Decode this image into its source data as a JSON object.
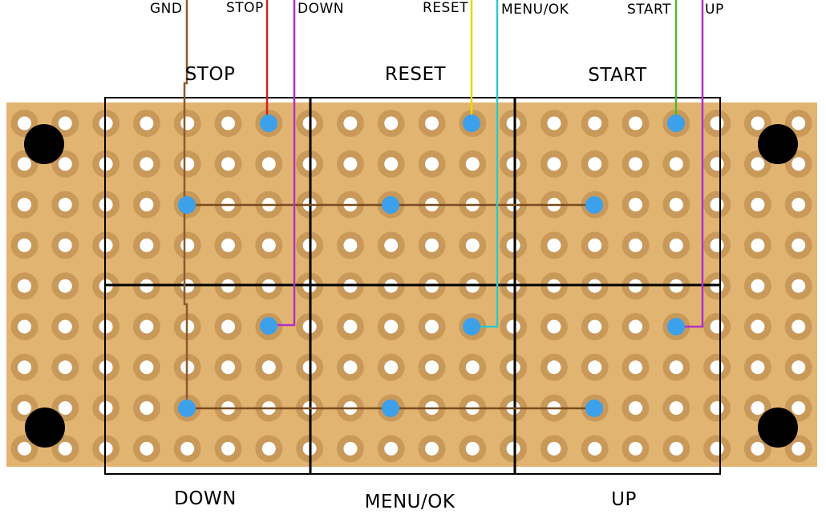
{
  "colors": {
    "board": "#e2b471",
    "pad_ring": "#c9995a",
    "hole": "#ffffff",
    "via": "#3da0ea",
    "mount_hole": "#000000",
    "outline": "#000000",
    "trace": "#7a4b1e"
  },
  "wire_labels": {
    "gnd": "GND",
    "stop": "STOP",
    "down": "DOWN",
    "reset": "RESET",
    "menu_ok": "MENU/OK",
    "start": "START",
    "up": "UP"
  },
  "button_labels": {
    "stop": "STOP",
    "reset": "RESET",
    "start": "START",
    "down": "DOWN",
    "menu_ok": "MENU/OK",
    "up": "UP"
  },
  "wires": [
    {
      "name": "gnd",
      "color": "#8b5a2b"
    },
    {
      "name": "stop",
      "color": "#d42020"
    },
    {
      "name": "down",
      "color": "#b030c8"
    },
    {
      "name": "reset",
      "color": "#e8d800"
    },
    {
      "name": "menu_ok",
      "color": "#30c8c8"
    },
    {
      "name": "start",
      "color": "#55b62f"
    },
    {
      "name": "up",
      "color": "#b030c8"
    }
  ]
}
